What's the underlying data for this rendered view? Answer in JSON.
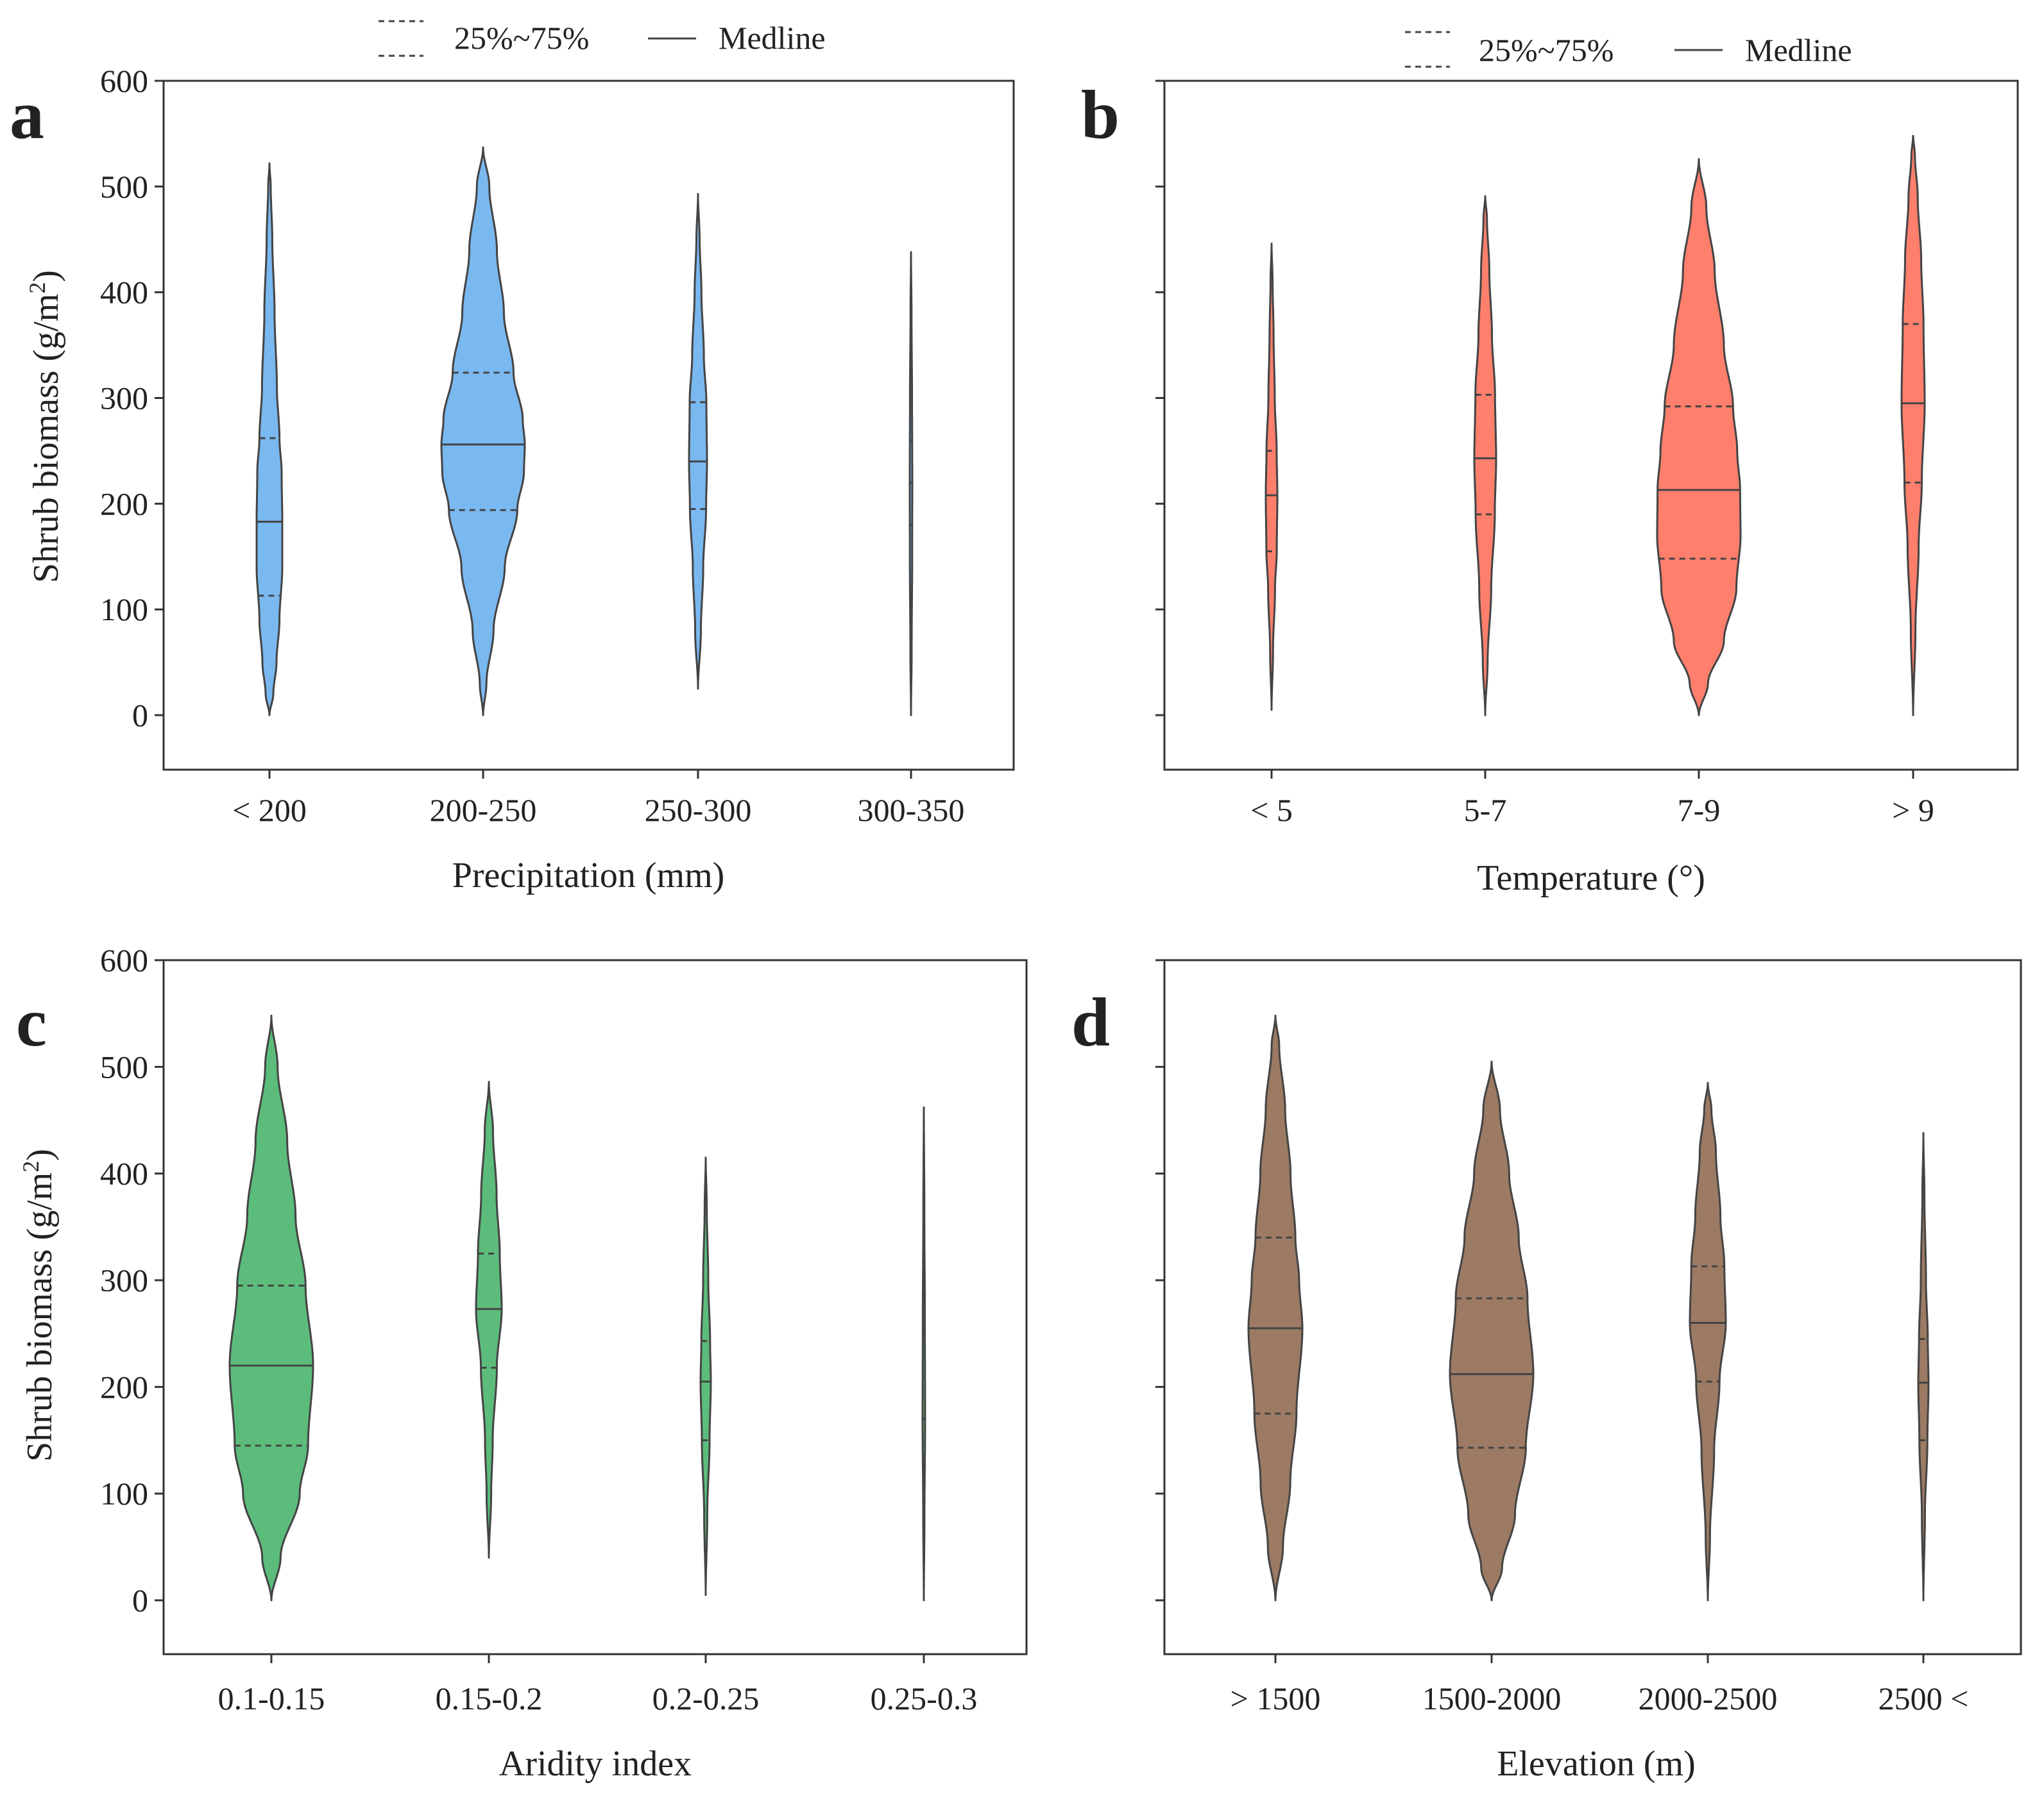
{
  "legend": {
    "quartile_label": "25%~75%",
    "median_label": "Medline"
  },
  "colors": {
    "a": "#7ab8f0",
    "b": "#fd7f6c",
    "c": "#5cbc7b",
    "d": "#9c7a63",
    "outline": "#444444"
  },
  "chart_data": [
    {
      "panel": "a",
      "type": "violin",
      "xlabel": "Precipitation (mm)",
      "ylabel": "Shrub biomass (g/m²)",
      "ylabel_main": "Shrub biomass (g/m",
      "ylabel_sup": "2",
      "ylabel_close": ")",
      "ylim": [
        -50,
        600
      ],
      "yticks": [
        0,
        100,
        200,
        300,
        400,
        500,
        600
      ],
      "categories": [
        "< 200",
        "200-250",
        "250-300",
        "300-350"
      ],
      "violins": [
        {
          "median": 183,
          "q1": 113,
          "q3": 262,
          "min": 0,
          "max": 522,
          "max_width": 20,
          "profile": [
            [
              0,
              0
            ],
            [
              20,
              0.3
            ],
            [
              50,
              0.55
            ],
            [
              90,
              0.78
            ],
            [
              140,
              1.0
            ],
            [
              183,
              1.0
            ],
            [
              230,
              0.95
            ],
            [
              262,
              0.78
            ],
            [
              310,
              0.58
            ],
            [
              380,
              0.4
            ],
            [
              450,
              0.22
            ],
            [
              500,
              0.1
            ],
            [
              522,
              0
            ]
          ]
        },
        {
          "median": 256,
          "q1": 194,
          "q3": 324,
          "min": 0,
          "max": 537,
          "max_width": 65,
          "profile": [
            [
              0,
              0
            ],
            [
              30,
              0.08
            ],
            [
              80,
              0.25
            ],
            [
              140,
              0.52
            ],
            [
              194,
              0.82
            ],
            [
              230,
              0.98
            ],
            [
              256,
              1.0
            ],
            [
              280,
              0.95
            ],
            [
              324,
              0.73
            ],
            [
              380,
              0.5
            ],
            [
              440,
              0.33
            ],
            [
              500,
              0.15
            ],
            [
              537,
              0
            ]
          ]
        },
        {
          "median": 240,
          "q1": 195,
          "q3": 296,
          "min": 25,
          "max": 493,
          "max_width": 14,
          "profile": [
            [
              25,
              0
            ],
            [
              80,
              0.32
            ],
            [
              140,
              0.58
            ],
            [
              195,
              0.9
            ],
            [
              240,
              1.0
            ],
            [
              296,
              0.93
            ],
            [
              340,
              0.65
            ],
            [
              400,
              0.38
            ],
            [
              450,
              0.18
            ],
            [
              493,
              0
            ]
          ]
        },
        {
          "median": 220,
          "q1": 180,
          "q3": 260,
          "min": 0,
          "max": 438,
          "max_width": 2,
          "profile": [
            [
              0,
              0
            ],
            [
              60,
              0.5
            ],
            [
              150,
              0.9
            ],
            [
              220,
              1.0
            ],
            [
              300,
              0.8
            ],
            [
              380,
              0.4
            ],
            [
              438,
              0
            ]
          ]
        }
      ]
    },
    {
      "panel": "b",
      "type": "violin",
      "xlabel": "Temperature (°)",
      "ylim": [
        -50,
        600
      ],
      "yticks": [
        0,
        100,
        200,
        300,
        400,
        500,
        600
      ],
      "categories": [
        "< 5",
        "5-7",
        "7-9",
        "> 9"
      ],
      "violins": [
        {
          "median": 208,
          "q1": 155,
          "q3": 250,
          "min": 5,
          "max": 446,
          "max_width": 9,
          "profile": [
            [
              5,
              0
            ],
            [
              60,
              0.25
            ],
            [
              120,
              0.6
            ],
            [
              155,
              0.9
            ],
            [
              208,
              1.0
            ],
            [
              250,
              0.88
            ],
            [
              300,
              0.55
            ],
            [
              360,
              0.35
            ],
            [
              410,
              0.18
            ],
            [
              446,
              0
            ]
          ]
        },
        {
          "median": 243,
          "q1": 190,
          "q3": 303,
          "min": 0,
          "max": 491,
          "max_width": 17,
          "profile": [
            [
              0,
              0
            ],
            [
              50,
              0.22
            ],
            [
              120,
              0.55
            ],
            [
              190,
              0.88
            ],
            [
              243,
              1.0
            ],
            [
              303,
              0.9
            ],
            [
              360,
              0.62
            ],
            [
              420,
              0.38
            ],
            [
              470,
              0.16
            ],
            [
              491,
              0
            ]
          ]
        },
        {
          "median": 213,
          "q1": 148,
          "q3": 292,
          "min": 0,
          "max": 526,
          "max_width": 65,
          "profile": [
            [
              0,
              0
            ],
            [
              30,
              0.22
            ],
            [
              70,
              0.6
            ],
            [
              120,
              0.9
            ],
            [
              170,
              1.0
            ],
            [
              213,
              0.99
            ],
            [
              250,
              0.92
            ],
            [
              292,
              0.82
            ],
            [
              350,
              0.6
            ],
            [
              420,
              0.38
            ],
            [
              480,
              0.18
            ],
            [
              526,
              0
            ]
          ]
        },
        {
          "median": 295,
          "q1": 220,
          "q3": 370,
          "min": 0,
          "max": 548,
          "max_width": 18,
          "profile": [
            [
              0,
              0
            ],
            [
              80,
              0.2
            ],
            [
              160,
              0.48
            ],
            [
              220,
              0.75
            ],
            [
              295,
              1.0
            ],
            [
              370,
              0.9
            ],
            [
              430,
              0.7
            ],
            [
              490,
              0.4
            ],
            [
              530,
              0.15
            ],
            [
              548,
              0
            ]
          ]
        }
      ]
    },
    {
      "panel": "c",
      "type": "violin",
      "xlabel": "Aridity index",
      "ylabel": "Shrub biomass (g/m²)",
      "ylabel_main": "Shrub biomass (g/m",
      "ylabel_sup": "2",
      "ylabel_close": ")",
      "ylim": [
        -50,
        600
      ],
      "yticks": [
        0,
        100,
        200,
        300,
        400,
        500,
        600
      ],
      "categories": [
        "0.1-0.15",
        "0.15-0.2",
        "0.2-0.25",
        "0.25-0.3"
      ],
      "violins": [
        {
          "median": 220,
          "q1": 145,
          "q3": 295,
          "min": 0,
          "max": 548,
          "max_width": 65,
          "profile": [
            [
              0,
              0
            ],
            [
              40,
              0.22
            ],
            [
              100,
              0.68
            ],
            [
              145,
              0.88
            ],
            [
              220,
              1.0
            ],
            [
              295,
              0.82
            ],
            [
              360,
              0.58
            ],
            [
              430,
              0.38
            ],
            [
              500,
              0.15
            ],
            [
              548,
              0
            ]
          ]
        },
        {
          "median": 273,
          "q1": 218,
          "q3": 325,
          "min": 40,
          "max": 486,
          "max_width": 20,
          "profile": [
            [
              40,
              0
            ],
            [
              100,
              0.18
            ],
            [
              150,
              0.3
            ],
            [
              218,
              0.62
            ],
            [
              273,
              1.0
            ],
            [
              325,
              0.85
            ],
            [
              380,
              0.6
            ],
            [
              440,
              0.32
            ],
            [
              486,
              0
            ]
          ]
        },
        {
          "median": 205,
          "q1": 150,
          "q3": 243,
          "min": 5,
          "max": 415,
          "max_width": 8,
          "profile": [
            [
              5,
              0
            ],
            [
              80,
              0.3
            ],
            [
              150,
              0.75
            ],
            [
              205,
              1.0
            ],
            [
              243,
              0.85
            ],
            [
              300,
              0.5
            ],
            [
              370,
              0.2
            ],
            [
              415,
              0
            ]
          ]
        },
        {
          "median": 170,
          "q1": 80,
          "q3": 250,
          "min": 0,
          "max": 462,
          "max_width": 2,
          "profile": [
            [
              0,
              0
            ],
            [
              80,
              0.5
            ],
            [
              170,
              1.0
            ],
            [
              260,
              0.8
            ],
            [
              370,
              0.4
            ],
            [
              462,
              0
            ]
          ]
        }
      ]
    },
    {
      "panel": "d",
      "type": "violin",
      "xlabel": "Elevation (m)",
      "ylim": [
        -50,
        600
      ],
      "yticks": [
        0,
        100,
        200,
        300,
        400,
        500,
        600
      ],
      "categories": [
        "> 1500",
        "1500-2000",
        "2000-2500",
        "2500 <"
      ],
      "violins": [
        {
          "median": 255,
          "q1": 175,
          "q3": 340,
          "min": 0,
          "max": 548,
          "max_width": 42,
          "profile": [
            [
              0,
              0
            ],
            [
              50,
              0.28
            ],
            [
              110,
              0.55
            ],
            [
              175,
              0.78
            ],
            [
              255,
              1.0
            ],
            [
              300,
              0.88
            ],
            [
              340,
              0.74
            ],
            [
              400,
              0.56
            ],
            [
              460,
              0.36
            ],
            [
              520,
              0.14
            ],
            [
              548,
              0
            ]
          ]
        },
        {
          "median": 212,
          "q1": 143,
          "q3": 283,
          "min": 0,
          "max": 505,
          "max_width": 65,
          "profile": [
            [
              0,
              0
            ],
            [
              30,
              0.25
            ],
            [
              80,
              0.56
            ],
            [
              143,
              0.82
            ],
            [
              212,
              1.0
            ],
            [
              283,
              0.86
            ],
            [
              340,
              0.65
            ],
            [
              400,
              0.42
            ],
            [
              460,
              0.2
            ],
            [
              505,
              0
            ]
          ]
        },
        {
          "median": 260,
          "q1": 205,
          "q3": 313,
          "min": 0,
          "max": 485,
          "max_width": 28,
          "profile": [
            [
              0,
              0
            ],
            [
              60,
              0.12
            ],
            [
              140,
              0.35
            ],
            [
              205,
              0.65
            ],
            [
              260,
              1.0
            ],
            [
              313,
              0.92
            ],
            [
              360,
              0.7
            ],
            [
              420,
              0.45
            ],
            [
              460,
              0.2
            ],
            [
              485,
              0
            ]
          ]
        },
        {
          "median": 204,
          "q1": 150,
          "q3": 245,
          "min": 0,
          "max": 438,
          "max_width": 8,
          "profile": [
            [
              0,
              0
            ],
            [
              80,
              0.3
            ],
            [
              150,
              0.78
            ],
            [
              204,
              1.0
            ],
            [
              245,
              0.85
            ],
            [
              300,
              0.5
            ],
            [
              380,
              0.2
            ],
            [
              438,
              0
            ]
          ]
        }
      ]
    }
  ]
}
